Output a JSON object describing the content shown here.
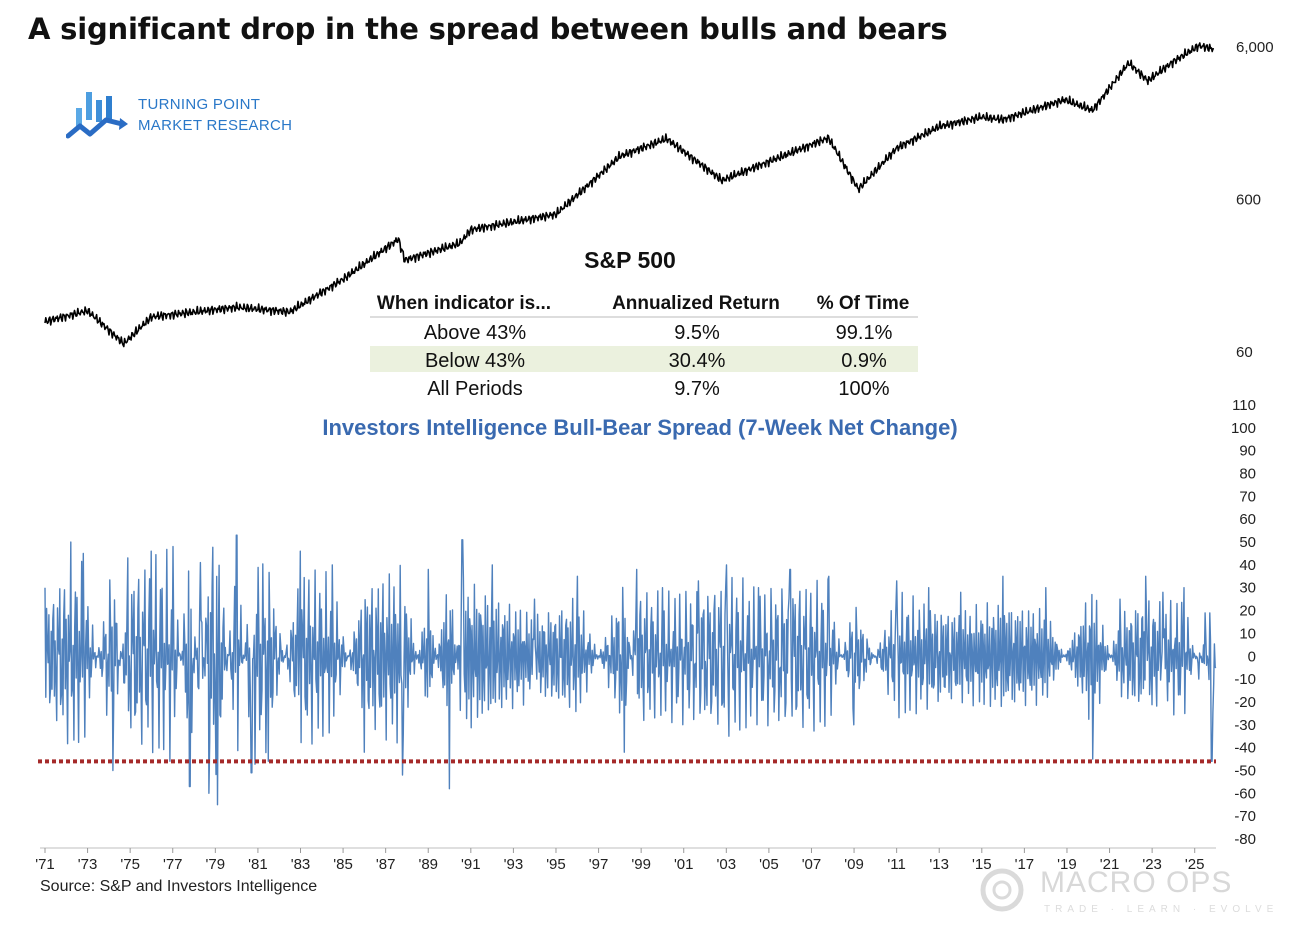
{
  "title": "A significant drop in the spread between bulls and bears",
  "logo": {
    "line1": "TURNING POINT",
    "line2": "MARKET RESEARCH",
    "icon": "bar-chart-arrow-icon"
  },
  "source": "Source: S&P and Investors Intelligence",
  "watermark": {
    "name": "MACRO OPS",
    "tagline": "TRADE · LEARN · EVOLVE",
    "icon": "macro-ops-ring-icon"
  },
  "colors": {
    "spx_line": "#000000",
    "spread_line": "#4f81bd",
    "threshold": "#a52a2a",
    "table_highlight": "#ebf1de",
    "subtitle": "#3a6ab0"
  },
  "chart_data": [
    {
      "type": "line",
      "title": "S&P 500",
      "scale": "log",
      "ylim": [
        30,
        7500
      ],
      "y_ticks": [
        "60",
        "600",
        "6,000"
      ],
      "series": [
        {
          "name": "S&P 500",
          "x": [
            1971.0,
            1973.0,
            1974.7,
            1976.0,
            1980.0,
            1982.5,
            1985.0,
            1987.6,
            1987.9,
            1990.5,
            1991.0,
            1995.0,
            1998.0,
            2000.2,
            2002.8,
            2007.8,
            2009.2,
            2011.0,
            2013.0,
            2015.0,
            2016.0,
            2018.9,
            2020.2,
            2021.9,
            2022.8,
            2024.0,
            2025.2,
            2025.9
          ],
          "values": [
            95,
            112,
            68,
            102,
            118,
            110,
            180,
            330,
            240,
            310,
            380,
            480,
            1150,
            1500,
            800,
            1520,
            700,
            1300,
            1800,
            2080,
            2000,
            2700,
            2300,
            4700,
            3600,
            4800,
            6100,
            5800
          ]
        }
      ],
      "table": {
        "headers": [
          "When indicator is...",
          "Annualized Return",
          "% Of Time"
        ],
        "rows": [
          [
            "Above 43%",
            "9.5%",
            "99.1%"
          ],
          [
            "Below 43%",
            "30.4%",
            "0.9%"
          ],
          [
            "All Periods",
            "9.7%",
            "100%"
          ]
        ],
        "highlight_row": 1
      }
    },
    {
      "type": "line",
      "title": "Investors Intelligence Bull-Bear Spread (7-Week Net Change)",
      "xlim": [
        1971,
        2026
      ],
      "ylim": [
        -80,
        110
      ],
      "y_ticks": [
        110,
        100,
        90,
        80,
        70,
        60,
        50,
        40,
        30,
        20,
        10,
        0,
        -10,
        -20,
        -30,
        -40,
        -50,
        -60,
        -70,
        -80
      ],
      "x_tick_labels": [
        "'71",
        "'73",
        "'75",
        "'77",
        "'79",
        "'81",
        "'83",
        "'85",
        "'87",
        "'89",
        "'91",
        "'93",
        "'95",
        "'97",
        "'99",
        "'01",
        "'03",
        "'05",
        "'07",
        "'09",
        "'11",
        "'13",
        "'15",
        "'17",
        "'19",
        "'21",
        "'23",
        "'25"
      ],
      "threshold": -46,
      "series": [
        {
          "name": "Bull-Bear Spread 7-Week Net Change",
          "x": [
            1971.0,
            1972.2,
            1972.8,
            1974.2,
            1974.9,
            1976.0,
            1977.0,
            1977.8,
            1978.3,
            1978.7,
            1979.1,
            1980.0,
            1980.7,
            1981.5,
            1983.0,
            1984.5,
            1986.0,
            1987.8,
            1989.0,
            1990.0,
            1990.6,
            1992.0,
            1994.0,
            1996.0,
            1998.2,
            1998.8,
            2000.0,
            2001.7,
            2003.0,
            2004.5,
            2006.0,
            2007.8,
            2009.0,
            2011.0,
            2012.5,
            2014.0,
            2016.0,
            2018.0,
            2020.2,
            2021.5,
            2022.7,
            2023.5,
            2024.5,
            2025.2,
            2025.5,
            2025.8,
            2026.0
          ],
          "values": [
            30,
            50,
            45,
            -50,
            43,
            46,
            48,
            -57,
            41,
            -60,
            -65,
            53,
            -51,
            -46,
            46,
            40,
            -42,
            -52,
            38,
            -58,
            51,
            40,
            25,
            35,
            -42,
            38,
            30,
            33,
            40,
            30,
            38,
            35,
            -30,
            33,
            30,
            28,
            35,
            30,
            -45,
            25,
            35,
            28,
            30,
            -10,
            19,
            -46,
            -5
          ]
        }
      ]
    }
  ]
}
